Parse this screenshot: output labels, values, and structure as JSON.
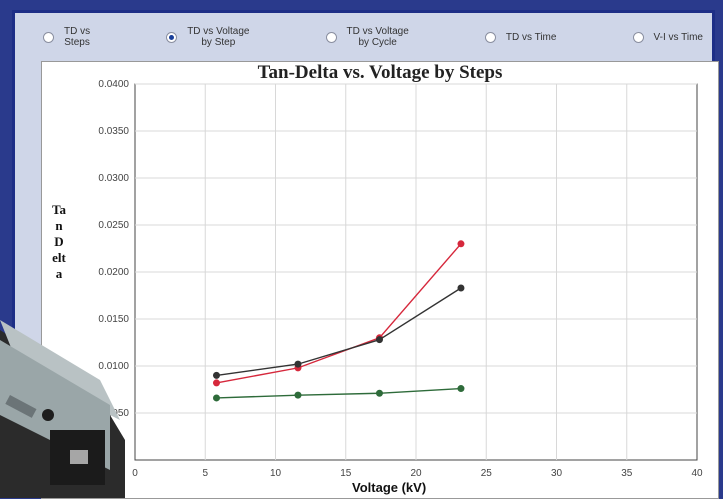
{
  "tabs": [
    {
      "label": "TD vs\nSteps",
      "selected": false
    },
    {
      "label": "TD vs Voltage\nby Step",
      "selected": true
    },
    {
      "label": "TD vs Voltage\nby Cycle",
      "selected": false
    },
    {
      "label": "TD vs Time",
      "selected": false
    },
    {
      "label": "V-I vs Time",
      "selected": false
    }
  ],
  "colors": {
    "selected_dot": "#1a3f9a",
    "frame": "#1d2e86"
  },
  "chart_data": {
    "type": "line",
    "title": "Tan-Delta vs. Voltage by Steps",
    "xlabel": "Voltage (kV)",
    "ylabel": "Tan Delta",
    "xlim": [
      0,
      40
    ],
    "ylim": [
      0,
      0.04
    ],
    "xticks": [
      "0",
      "5",
      "10",
      "15",
      "20",
      "25",
      "30",
      "35",
      "40"
    ],
    "yticks": [
      "0.0400",
      "0.0350",
      "0.0300",
      "0.0250",
      "0.0200",
      "0.0150",
      "0.0100",
      "0.0050"
    ],
    "grid": true,
    "series": [
      {
        "color": "#d6283c",
        "x": [
          5.8,
          11.6,
          17.4,
          23.2
        ],
        "y": [
          0.0082,
          0.0098,
          0.013,
          0.023
        ]
      },
      {
        "color": "#333333",
        "x": [
          5.8,
          11.6,
          17.4,
          23.2
        ],
        "y": [
          0.009,
          0.0102,
          0.0128,
          0.0183
        ]
      },
      {
        "color": "#2e6b3a",
        "x": [
          5.8,
          11.6,
          17.4,
          23.2
        ],
        "y": [
          0.0066,
          0.0069,
          0.0071,
          0.0076
        ]
      }
    ]
  }
}
